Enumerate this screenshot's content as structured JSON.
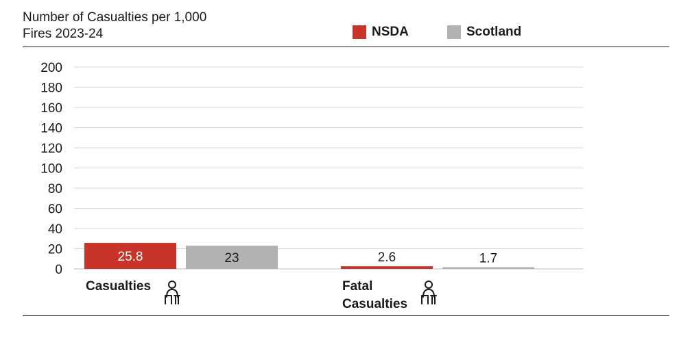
{
  "header": {
    "title_line1": "Number of Casualties per 1,000",
    "title_line2": "Fires 2023-24"
  },
  "icons": [
    "person-at-desk-icon",
    "person-at-desk-icon"
  ],
  "chart_data": {
    "type": "bar",
    "title": "Number of Casualties per 1,000 Fires 2023-24",
    "categories": [
      [
        "Casualties"
      ],
      [
        "Fatal",
        "Casualties"
      ]
    ],
    "series": [
      {
        "name": "NSDA",
        "color": "#c9342a",
        "values": [
          25.8,
          2.6
        ],
        "labels": [
          "25.8",
          "2.6"
        ]
      },
      {
        "name": "Scotland",
        "color": "#b2b2b2",
        "values": [
          23,
          1.7
        ],
        "labels": [
          "23",
          "1.7"
        ]
      }
    ],
    "ylim": [
      0,
      200
    ],
    "yticks": [
      0,
      20,
      40,
      60,
      80,
      100,
      120,
      140,
      160,
      180,
      200
    ],
    "grid": true,
    "legend_position": "top-right",
    "xlabel": "",
    "ylabel": ""
  }
}
